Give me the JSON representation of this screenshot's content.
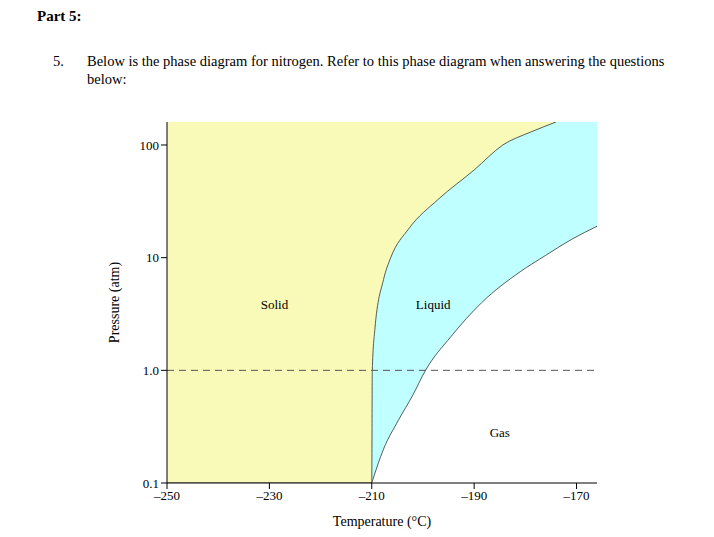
{
  "header": "Part 5:",
  "question": {
    "number": "5.",
    "text": "Below is the phase diagram for nitrogen. Refer to this phase diagram when answering the questions below:"
  },
  "chart_data": {
    "type": "area",
    "x_label": "Temperature (°C)",
    "y_label": "Pressure (atm)",
    "xlim": [
      -250,
      -166
    ],
    "xticks": [
      {
        "value": -250,
        "label": "–250"
      },
      {
        "value": -230,
        "label": "–230"
      },
      {
        "value": -210,
        "label": "–210"
      },
      {
        "value": -190,
        "label": "–190"
      },
      {
        "value": -170,
        "label": "–170"
      }
    ],
    "ylim": [
      0.1,
      160
    ],
    "yticks": [
      0.1,
      {
        "value": 1,
        "label": "1.0"
      },
      10,
      100
    ],
    "log": "y",
    "regions": [
      {
        "label": "Solid",
        "color": "#fafab8",
        "label_at": [
          -229,
          3.7
        ]
      },
      {
        "label": "Liquid",
        "color": "#bfffff",
        "label_at": [
          -198,
          3.7
        ]
      },
      {
        "label": "Gas",
        "color": "#ffffff",
        "label_at": [
          -185,
          0.27
        ]
      }
    ],
    "curves": [
      {
        "between": [
          "Solid",
          "Liquid"
        ],
        "x": [
          -210,
          -209.9,
          -209.4,
          -207.7,
          -206.3,
          -202.8,
          -197,
          -190,
          -184.4,
          -179,
          -174
        ],
        "values": [
          0.1,
          1,
          2.3,
          6.4,
          10,
          18,
          33,
          60,
          100,
          130,
          160
        ]
      },
      {
        "between": [
          "Liquid",
          "Gas"
        ],
        "x": [
          -210,
          -207.7,
          -204.8,
          -202,
          -199.5,
          -194.5,
          -188.5,
          -181,
          -176,
          -171,
          -166
        ],
        "values": [
          0.1,
          0.2,
          0.36,
          0.6,
          1,
          2,
          4,
          7.5,
          10.5,
          14.5,
          19
        ]
      }
    ],
    "reference_lines": [
      {
        "y": 1,
        "line_style": "dashed",
        "color": "#555555"
      }
    ]
  }
}
